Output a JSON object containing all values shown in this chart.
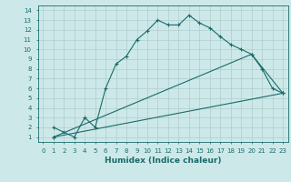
{
  "xlabel": "Humidex (Indice chaleur)",
  "background_color": "#cde8e8",
  "grid_color": "#b0cccc",
  "line_color": "#1a6b6b",
  "xlim": [
    -0.5,
    23.5
  ],
  "ylim": [
    0.5,
    14.5
  ],
  "xticks": [
    0,
    1,
    2,
    3,
    4,
    5,
    6,
    7,
    8,
    9,
    10,
    11,
    12,
    13,
    14,
    15,
    16,
    17,
    18,
    19,
    20,
    21,
    22,
    23
  ],
  "yticks": [
    1,
    2,
    3,
    4,
    5,
    6,
    7,
    8,
    9,
    10,
    11,
    12,
    13,
    14
  ],
  "line1_x": [
    1,
    2,
    3,
    4,
    5,
    6,
    7,
    8,
    9,
    10,
    11,
    12,
    13,
    14,
    15,
    16,
    17,
    18,
    19,
    20,
    21,
    22,
    23
  ],
  "line1_y": [
    2,
    1.5,
    1,
    3,
    2,
    6,
    8.5,
    9.3,
    11,
    11.9,
    13,
    12.5,
    12.5,
    13.5,
    12.7,
    12.2,
    11.3,
    10.5,
    10,
    9.5,
    8,
    6,
    5.5
  ],
  "line2_x": [
    1,
    20,
    23
  ],
  "line2_y": [
    1,
    9.5,
    5.5
  ],
  "line3_x": [
    1,
    23
  ],
  "line3_y": [
    1,
    5.5
  ],
  "marker": "+"
}
